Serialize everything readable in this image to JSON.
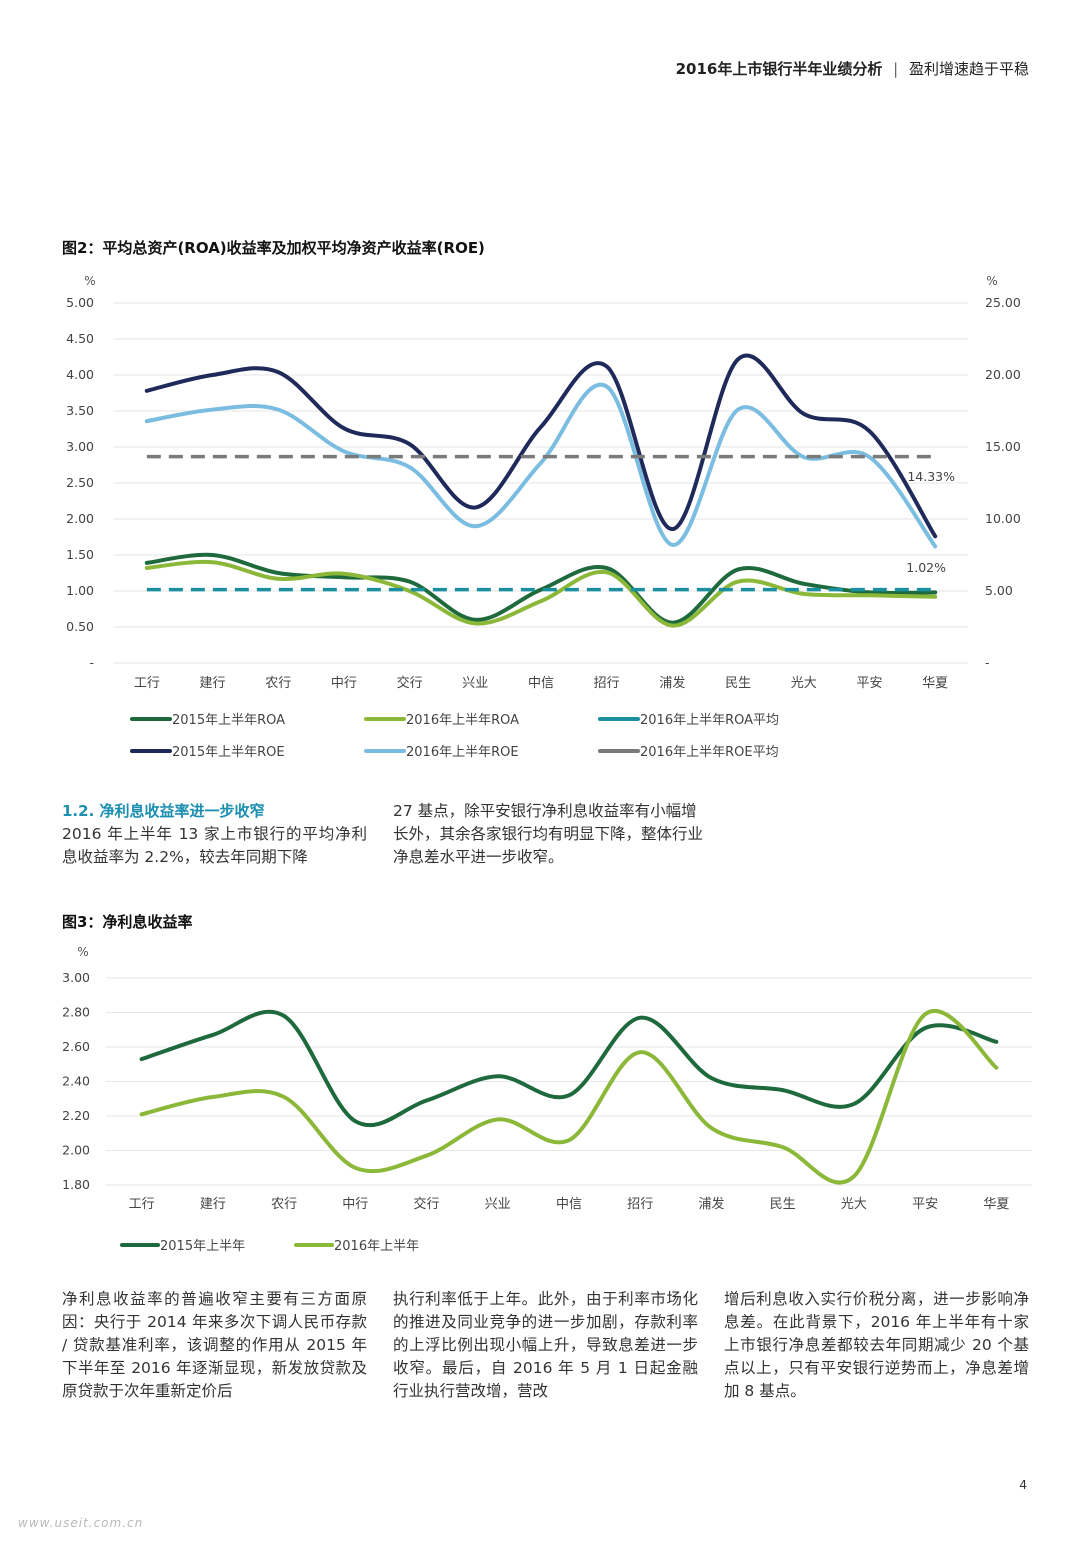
{
  "header": {
    "title_bold": "2016年上市银行半年业绩分析",
    "separator": "|",
    "subtitle": "盈利增速趋于平稳"
  },
  "figure2": {
    "title": "图2：平均总资产(ROA)收益率及加权平均净资产收益率(ROE)"
  },
  "figure3": {
    "title": "图3：净利息收益率"
  },
  "section_1_2": {
    "title": "1.2. 净利息收益率进一步收窄",
    "col1_body": "2016 年上半年 13 家上市银行的平均净利息收益率为 2.2%，较去年同期下降",
    "col2_body": "27 基点，除平安银行净利息收益率有小幅增长外，其余各家银行均有明显下降，整体行业净息差水平进一步收窄。"
  },
  "bottom_text": {
    "col1": "净利息收益率的普遍收窄主要有三方面原因：央行于 2014 年来多次下调人民币存款 / 贷款基准利率，该调整的作用从 2015 年下半年至 2016 年逐渐显现，新发放贷款及原贷款于次年重新定价后",
    "col2": "执行利率低于上年。此外，由于利率市场化的推进及同业竞争的进一步加剧，存款利率的上浮比例出现小幅上升，导致息差进一步收窄。最后，自 2016 年 5 月 1 日起金融行业执行营改增，营改",
    "col3": "增后利息收入实行价税分离，进一步影响净息差。在此背景下，2016 年上半年有十家上市银行净息差都较去年同期减少 20 个基点以上，只有平安银行逆势而上，净息差增加 8 基点。"
  },
  "page_number": "4",
  "watermark": "www.useit.com.cn",
  "colors": {
    "dark_green": "#1e6a3d",
    "light_green": "#8cb83a",
    "teal": "#1a8fa0",
    "navy": "#1f2a5a",
    "light_blue": "#7bbde0",
    "gray": "#7a7a7a",
    "section_blue": "#1a8fb0"
  },
  "chart_data": [
    {
      "type": "line",
      "title": "图2：平均总资产(ROA)收益率及加权平均净资产收益率(ROE)",
      "left_unit": "%",
      "right_unit": "%",
      "categories": [
        "工行",
        "建行",
        "农行",
        "中行",
        "交行",
        "兴业",
        "中信",
        "招行",
        "浦发",
        "民生",
        "光大",
        "平安",
        "华夏"
      ],
      "y_left": {
        "min": 0,
        "max": 5,
        "ticks": [
          "-",
          "0.50",
          "1.00",
          "1.50",
          "2.00",
          "2.50",
          "3.00",
          "3.50",
          "4.00",
          "4.50",
          "5.00"
        ]
      },
      "y_right": {
        "min": 0,
        "max": 25,
        "ticks": [
          "-",
          "5.00",
          "10.00",
          "15.00",
          "20.00",
          "25.00"
        ]
      },
      "series": [
        {
          "name": "2015年上半年ROA",
          "axis": "left",
          "style": "solid",
          "color": "#1e6a3d",
          "values": [
            1.39,
            1.5,
            1.25,
            1.19,
            1.13,
            0.6,
            1.02,
            1.32,
            0.56,
            1.3,
            1.1,
            0.98,
            0.98
          ]
        },
        {
          "name": "2016年上半年ROA",
          "axis": "left",
          "style": "solid",
          "color": "#8cb83a",
          "values": [
            1.32,
            1.4,
            1.17,
            1.24,
            1.0,
            0.55,
            0.86,
            1.26,
            0.52,
            1.13,
            0.96,
            0.94,
            0.92
          ]
        },
        {
          "name": "2016年上半年ROA平均",
          "axis": "left",
          "style": "dashed",
          "color": "#1a8fa0",
          "values": [
            1.02,
            1.02,
            1.02,
            1.02,
            1.02,
            1.02,
            1.02,
            1.02,
            1.02,
            1.02,
            1.02,
            1.02,
            1.02
          ]
        },
        {
          "name": "2015年上半年ROE",
          "axis": "right",
          "style": "solid",
          "color": "#1f2a5a",
          "values": [
            18.9,
            20.0,
            20.2,
            16.3,
            15.2,
            10.8,
            16.4,
            20.6,
            9.3,
            21.1,
            17.3,
            16.1,
            8.8
          ]
        },
        {
          "name": "2016年上半年ROE",
          "axis": "right",
          "style": "solid",
          "color": "#7bbde0",
          "values": [
            16.8,
            17.6,
            17.6,
            14.7,
            13.6,
            9.5,
            13.9,
            19.2,
            8.2,
            17.6,
            14.3,
            14.3,
            8.1
          ]
        },
        {
          "name": "2016年上半年ROE平均",
          "axis": "right",
          "style": "dashed",
          "color": "#7a7a7a",
          "values": [
            14.33,
            14.33,
            14.33,
            14.33,
            14.33,
            14.33,
            14.33,
            14.33,
            14.33,
            14.33,
            14.33,
            14.33,
            14.33
          ]
        }
      ],
      "annotations": [
        "14.33%",
        "1.02%"
      ]
    },
    {
      "type": "line",
      "title": "图3：净利息收益率",
      "unit": "%",
      "categories": [
        "工行",
        "建行",
        "农行",
        "中行",
        "交行",
        "兴业",
        "中信",
        "招行",
        "浦发",
        "民生",
        "光大",
        "平安",
        "华夏"
      ],
      "y": {
        "min": 1.8,
        "max": 3.0,
        "ticks": [
          "1.80",
          "2.00",
          "2.20",
          "2.40",
          "2.60",
          "2.80",
          "3.00"
        ]
      },
      "series": [
        {
          "name": "2015年上半年",
          "color": "#1e6a3d",
          "values": [
            2.53,
            2.67,
            2.78,
            2.17,
            2.29,
            2.43,
            2.32,
            2.77,
            2.42,
            2.35,
            2.27,
            2.71,
            2.63
          ]
        },
        {
          "name": "2016年上半年",
          "color": "#8cb83a",
          "values": [
            2.21,
            2.31,
            2.31,
            1.9,
            1.97,
            2.18,
            2.06,
            2.57,
            2.13,
            2.02,
            1.85,
            2.79,
            2.48
          ]
        }
      ]
    }
  ]
}
